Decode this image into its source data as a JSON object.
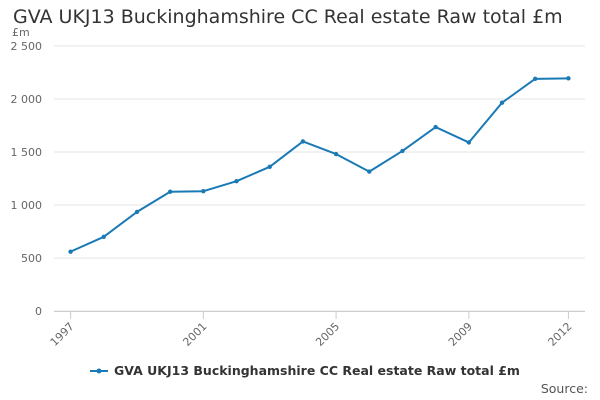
{
  "title": "GVA UKJ13 Buckinghamshire CC Real estate Raw total £m",
  "source_label": "Source:",
  "colors": {
    "series": "#1a7ab5",
    "grid": "#e6e6e6",
    "text": "#333333",
    "tick": "#666666"
  },
  "chart_data": {
    "type": "line",
    "title": "GVA UKJ13 Buckinghamshire CC Real estate Raw total £m",
    "ylabel": "£m",
    "xlabel": "",
    "ylim": [
      0,
      2500
    ],
    "yticks": [
      0,
      500,
      1000,
      1500,
      2000,
      2500
    ],
    "ytick_labels": [
      "0",
      "500",
      "1 000",
      "1 500",
      "2 000",
      "2 500"
    ],
    "xticks": [
      1997,
      2001,
      2005,
      2009,
      2012
    ],
    "xtick_labels": [
      "1997",
      "2001",
      "2005",
      "2009",
      "2012"
    ],
    "grid": true,
    "legend_position": "bottom",
    "series": [
      {
        "name": "GVA UKJ13 Buckinghamshire CC Real estate Raw total £m",
        "x": [
          1997,
          1998,
          1999,
          2000,
          2001,
          2002,
          2003,
          2004,
          2005,
          2006,
          2007,
          2008,
          2009,
          2010,
          2011,
          2012
        ],
        "values": [
          560,
          700,
          935,
          1125,
          1130,
          1225,
          1360,
          1600,
          1480,
          1315,
          1510,
          1735,
          1590,
          1965,
          2190,
          2195
        ]
      }
    ]
  }
}
